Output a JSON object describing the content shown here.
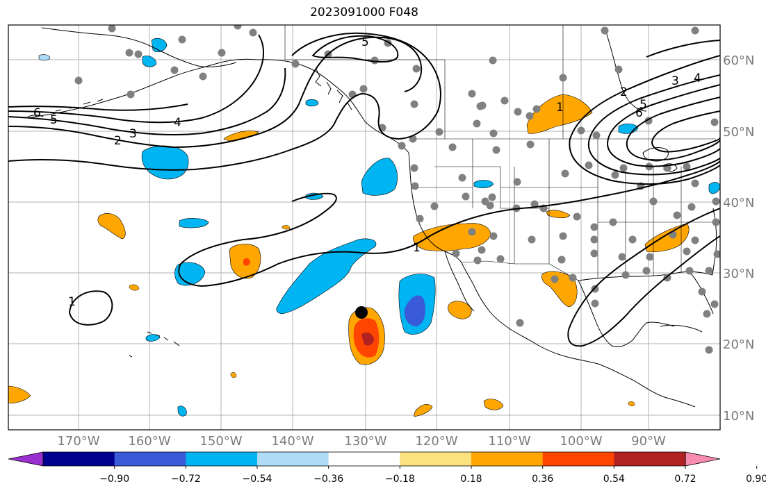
{
  "title": "2023091000 F048",
  "longitude_labels": [
    "170°W",
    "160°W",
    "150°W",
    "140°W",
    "130°W",
    "120°W",
    "110°W",
    "100°W",
    "90°W"
  ],
  "latitude_labels": [
    "60°N",
    "50°N",
    "40°N",
    "30°N",
    "20°N",
    "10°N"
  ],
  "colorbar": {
    "ticks": [
      "−0.90",
      "−0.72",
      "−0.54",
      "−0.36",
      "−0.18",
      "0.18",
      "0.36",
      "0.54",
      "0.72",
      "0.90"
    ],
    "colors": [
      "#9b30d0",
      "#000090",
      "#3a5bd9",
      "#00b5f2",
      "#aedcf6",
      "#ffffff",
      "#fbe27e",
      "#ffa600",
      "#ff4500",
      "#b22222",
      "#f78bb0"
    ]
  },
  "contour_labels": [
    "6",
    "5",
    "4",
    "3",
    "2",
    "1"
  ],
  "colors": {
    "gridline": "#b0b0b0",
    "station_dot": "#808080",
    "contour": "#000000"
  }
}
